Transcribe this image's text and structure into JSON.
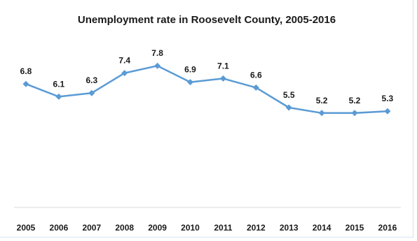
{
  "chart_data": {
    "type": "line",
    "title": "Unemployment rate in Roosevelt County, 2005-2016",
    "xlabel": "",
    "ylabel": "",
    "categories": [
      "2005",
      "2006",
      "2007",
      "2008",
      "2009",
      "2010",
      "2011",
      "2012",
      "2013",
      "2014",
      "2015",
      "2016"
    ],
    "series": [
      {
        "values": [
          6.8,
          6.1,
          6.3,
          7.4,
          7.8,
          6.9,
          7.1,
          6.6,
          5.5,
          5.2,
          5.2,
          5.3
        ],
        "color": "#5b9bd5"
      }
    ],
    "ylim": [
      0,
      9
    ],
    "grid": false,
    "legend": "none",
    "marker": "diamond",
    "data_labels": true
  }
}
